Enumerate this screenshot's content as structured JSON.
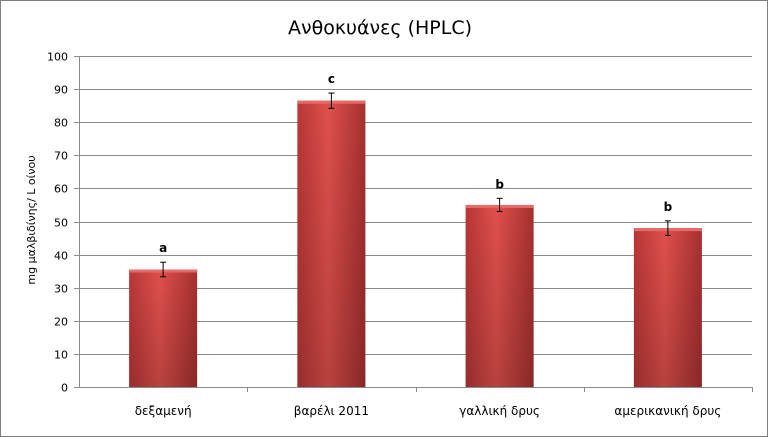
{
  "chart_data": {
    "type": "bar",
    "title": "Ανθοκυάνες (HPLC)",
    "xlabel": "",
    "ylabel": "mg μαλβιδίνης/ L οίνου",
    "ylim": [
      0,
      100
    ],
    "yticks": [
      0,
      10,
      20,
      30,
      40,
      50,
      60,
      70,
      80,
      90,
      100
    ],
    "grid": true,
    "legend": "none",
    "categories": [
      "δεξαμενή",
      "βαρέλι 2011",
      "γαλλική δρυς",
      "αμερικανική δρυς"
    ],
    "values": [
      35.5,
      86.5,
      55,
      48
    ],
    "errors": [
      2.2,
      2.3,
      2.0,
      2.2
    ],
    "significance_labels": [
      "a",
      "c",
      "b",
      "b"
    ],
    "colors": {
      "bar": "#d04040",
      "bar_dark": "#9c2b2b",
      "bar_light": "#e25a55",
      "grid": "#8c8c8c",
      "axis": "#8c8c8c"
    }
  }
}
